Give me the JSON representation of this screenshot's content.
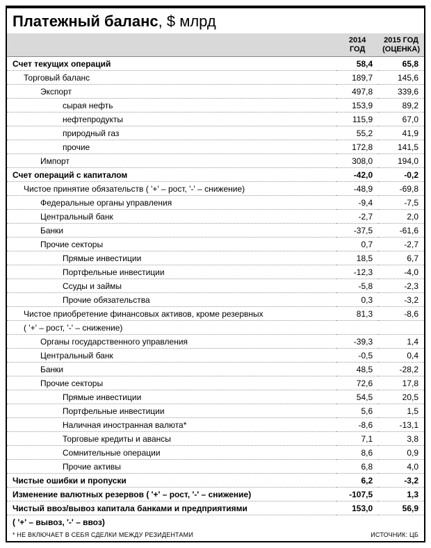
{
  "title_bold": "Платежный баланс",
  "title_rest": ", $ млрд",
  "columns": {
    "col1_line1": "2014",
    "col1_line2": "ГОД",
    "col2_line1": "2015 ГОД",
    "col2_line2": "(ОЦЕНКА)"
  },
  "rows": [
    {
      "label": "Счет текущих операций",
      "v1": "58,4",
      "v2": "65,8",
      "indent": 0,
      "bold": true
    },
    {
      "label": "Торговый баланс",
      "v1": "189,7",
      "v2": "145,6",
      "indent": 1,
      "bold": false
    },
    {
      "label": "Экспорт",
      "v1": "497,8",
      "v2": "339,6",
      "indent": 2,
      "bold": false
    },
    {
      "label": "сырая нефть",
      "v1": "153,9",
      "v2": "89,2",
      "indent": 3,
      "bold": false
    },
    {
      "label": "нефтепродукты",
      "v1": "115,9",
      "v2": "67,0",
      "indent": 3,
      "bold": false
    },
    {
      "label": "природный газ",
      "v1": "55,2",
      "v2": "41,9",
      "indent": 3,
      "bold": false
    },
    {
      "label": "прочие",
      "v1": "172,8",
      "v2": "141,5",
      "indent": 3,
      "bold": false
    },
    {
      "label": "Импорт",
      "v1": "308,0",
      "v2": "194,0",
      "indent": 2,
      "bold": false
    },
    {
      "label": "Счет операций с капиталом",
      "v1": "-42,0",
      "v2": "-0,2",
      "indent": 0,
      "bold": true
    },
    {
      "label": "Чистое принятие обязательств ( '+' – рост, '-' – снижение)",
      "v1": "-48,9",
      "v2": "-69,8",
      "indent": 1,
      "bold": false
    },
    {
      "label": "Федеральные органы управления",
      "v1": "-9,4",
      "v2": "-7,5",
      "indent": 2,
      "bold": false
    },
    {
      "label": "Центральный банк",
      "v1": "-2,7",
      "v2": "2,0",
      "indent": 2,
      "bold": false
    },
    {
      "label": "Банки",
      "v1": "-37,5",
      "v2": "-61,6",
      "indent": 2,
      "bold": false
    },
    {
      "label": "Прочие секторы",
      "v1": "0,7",
      "v2": "-2,7",
      "indent": 2,
      "bold": false
    },
    {
      "label": "Прямые инвестиции",
      "v1": "18,5",
      "v2": "6,7",
      "indent": 3,
      "bold": false
    },
    {
      "label": "Портфельные инвестиции",
      "v1": "-12,3",
      "v2": "-4,0",
      "indent": 3,
      "bold": false
    },
    {
      "label": "Ссуды и займы",
      "v1": "-5,8",
      "v2": "-2,3",
      "indent": 3,
      "bold": false
    },
    {
      "label": "Прочие обязательства",
      "v1": "0,3",
      "v2": "-3,2",
      "indent": 3,
      "bold": false
    },
    {
      "label": "Чистое приобретение финансовых активов, кроме резервных",
      "v1": "81,3",
      "v2": "-8,6",
      "indent": 1,
      "bold": false
    },
    {
      "label": "( '+' – рост, '-' – снижение)",
      "v1": "",
      "v2": "",
      "indent": 1,
      "bold": false
    },
    {
      "label": "Органы государственного управления",
      "v1": "-39,3",
      "v2": "1,4",
      "indent": 2,
      "bold": false
    },
    {
      "label": "Центральный банк",
      "v1": "-0,5",
      "v2": "0,4",
      "indent": 2,
      "bold": false
    },
    {
      "label": "Банки",
      "v1": "48,5",
      "v2": "-28,2",
      "indent": 2,
      "bold": false
    },
    {
      "label": "Прочие секторы",
      "v1": "72,6",
      "v2": "17,8",
      "indent": 2,
      "bold": false
    },
    {
      "label": "Прямые инвестиции",
      "v1": "54,5",
      "v2": "20,5",
      "indent": 3,
      "bold": false
    },
    {
      "label": "Портфельные инвестиции",
      "v1": "5,6",
      "v2": "1,5",
      "indent": 3,
      "bold": false
    },
    {
      "label": "Наличная иностранная валюта*",
      "v1": "-8,6",
      "v2": "-13,1",
      "indent": 3,
      "bold": false
    },
    {
      "label": "Торговые кредиты и авансы",
      "v1": "7,1",
      "v2": "3,8",
      "indent": 3,
      "bold": false
    },
    {
      "label": "Сомнительные операции",
      "v1": "8,6",
      "v2": "0,9",
      "indent": 3,
      "bold": false
    },
    {
      "label": "Прочие активы",
      "v1": "6,8",
      "v2": "4,0",
      "indent": 3,
      "bold": false
    },
    {
      "label": "Чистые ошибки и пропуски",
      "v1": "6,2",
      "v2": "-3,2",
      "indent": 0,
      "bold": true
    },
    {
      "label": "Изменение валютных резервов ( '+' – рост, '-' – снижение)",
      "v1": "-107,5",
      "v2": "1,3",
      "indent": 0,
      "bold": true
    },
    {
      "label": "Чистый ввоз/вывоз капитала банками и предприятиями",
      "v1": "153,0",
      "v2": "56,9",
      "indent": 0,
      "bold": true
    },
    {
      "label": "( '+' – вывоз, '-' – ввоз)",
      "v1": "",
      "v2": "",
      "indent": 0,
      "bold": true
    }
  ],
  "footnote": "* НЕ ВКЛЮЧАЕТ В СЕБЯ СДЕЛКИ МЕЖДУ РЕЗИДЕНТАМИ",
  "source": "ИСТОЧНИК: ЦБ"
}
